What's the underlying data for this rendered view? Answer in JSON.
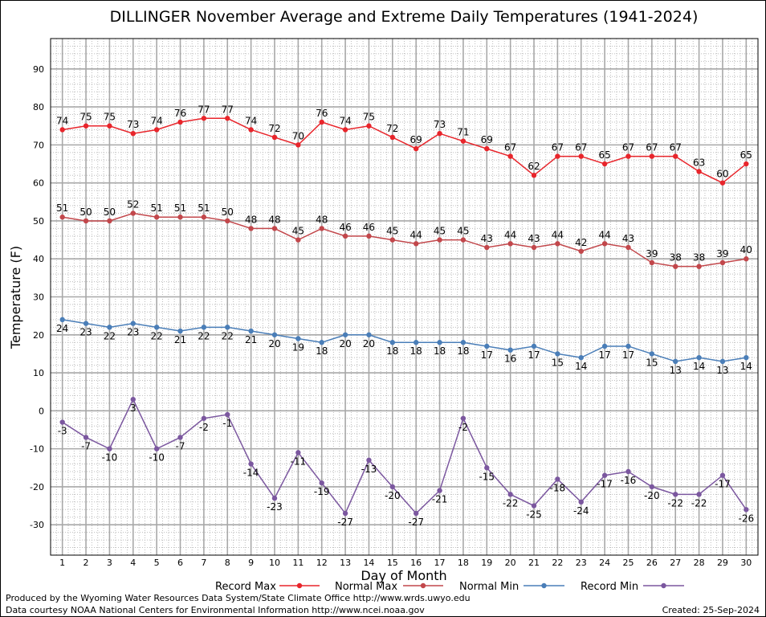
{
  "chart_data": {
    "type": "line",
    "title": "DILLINGER November Average and Extreme Daily Temperatures (1941-2024)",
    "xlabel": "Day of Month",
    "ylabel": "Temperature (F)",
    "x": [
      1,
      2,
      3,
      4,
      5,
      6,
      7,
      8,
      9,
      10,
      11,
      12,
      13,
      14,
      15,
      16,
      17,
      18,
      19,
      20,
      21,
      22,
      23,
      24,
      25,
      26,
      27,
      28,
      29,
      30
    ],
    "xlim": [
      0.5,
      30.5
    ],
    "ylim": [
      -38,
      98
    ],
    "yticks": [
      -30,
      -20,
      -10,
      0,
      10,
      20,
      30,
      40,
      50,
      60,
      70,
      80,
      90
    ],
    "grid": true,
    "legend_position": "bottom",
    "series": [
      {
        "name": "Record Max",
        "color": "#e8252b",
        "values": [
          74,
          75,
          75,
          73,
          74,
          76,
          77,
          77,
          74,
          72,
          70,
          76,
          74,
          75,
          72,
          69,
          73,
          71,
          69,
          67,
          62,
          67,
          67,
          65,
          67,
          67,
          67,
          63,
          60,
          65
        ]
      },
      {
        "name": "Normal Max",
        "color": "#c2474b",
        "values": [
          51,
          50,
          50,
          52,
          51,
          51,
          51,
          50,
          48,
          48,
          45,
          48,
          46,
          46,
          45,
          44,
          45,
          45,
          43,
          44,
          43,
          44,
          42,
          44,
          43,
          39,
          38,
          38,
          39,
          40
        ]
      },
      {
        "name": "Normal Min",
        "color": "#4a7eb8",
        "values": [
          24,
          23,
          22,
          23,
          22,
          21,
          22,
          22,
          21,
          20,
          19,
          18,
          20,
          20,
          18,
          18,
          18,
          18,
          17,
          16,
          17,
          15,
          14,
          17,
          17,
          15,
          13,
          14,
          13,
          14
        ]
      },
      {
        "name": "Record Min",
        "color": "#7b579f",
        "values": [
          -3,
          -7,
          -10,
          3,
          -10,
          -7,
          -2,
          -1,
          -14,
          -23,
          -11,
          -19,
          -27,
          -13,
          -20,
          -27,
          -21,
          -2,
          -15,
          -22,
          -25,
          -18,
          -24,
          -17,
          -16,
          -20,
          -22,
          -22,
          -17,
          -26
        ]
      }
    ]
  },
  "footer": {
    "produced_by": "Produced by the Wyoming Water Resources Data System/State Climate Office http://www.wrds.uwyo.edu",
    "courtesy": "Data courtesy NOAA National Centers for Environmental Information http://www.ncei.noaa.gov",
    "created": "Created:  25-Sep-2024"
  }
}
